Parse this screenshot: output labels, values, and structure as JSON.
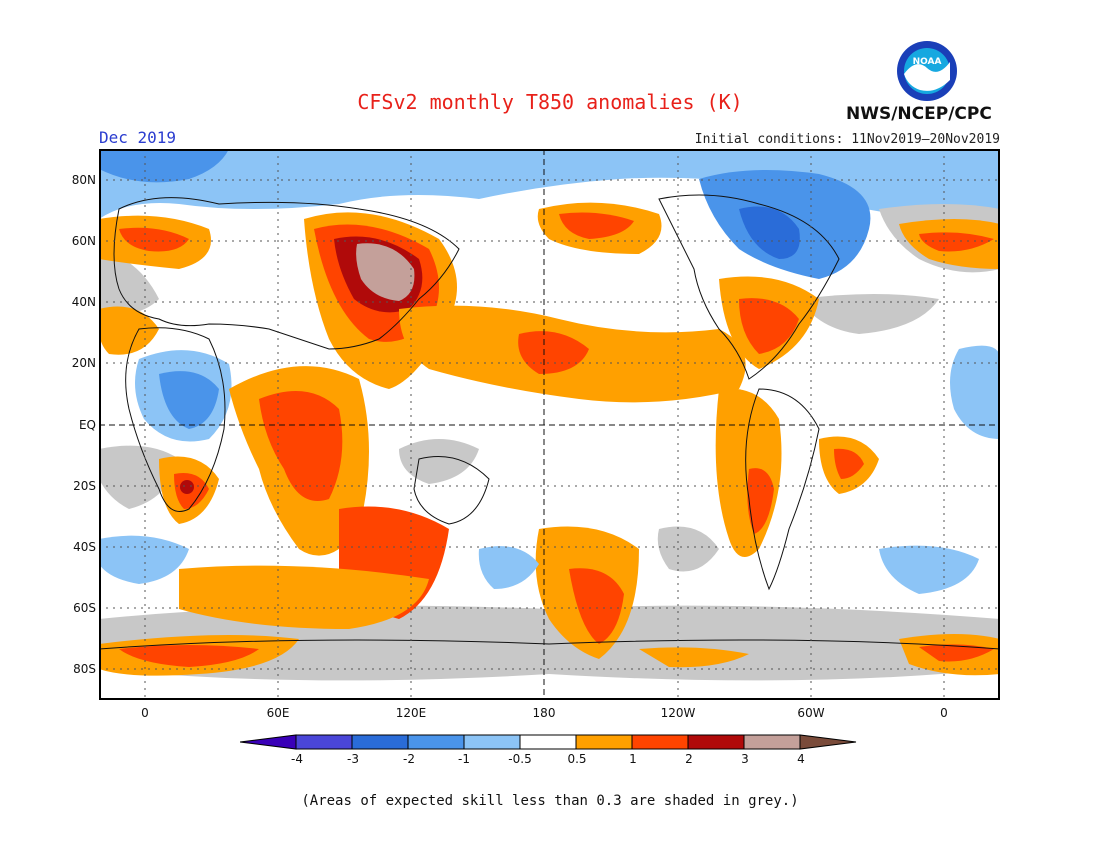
{
  "header": {
    "title": "CFSv2 monthly T850 anomalies (K)",
    "month": "Dec 2019",
    "initial_conditions": "Initial conditions: 11Nov2019–20Nov2019",
    "agency": "NWS/NCEP/CPC",
    "logo_text": "NOAA"
  },
  "axes": {
    "lat_labels": [
      "80N",
      "60N",
      "40N",
      "20N",
      "EQ",
      "20S",
      "40S",
      "60S",
      "80S"
    ],
    "lon_labels": [
      "0",
      "60E",
      "120E",
      "180",
      "120W",
      "60W",
      "0"
    ]
  },
  "legend": {
    "labels": [
      "-4",
      "-3",
      "-2",
      "-1",
      "-0.5",
      "0.5",
      "1",
      "2",
      "3",
      "4"
    ],
    "colors": [
      "#3a00b8",
      "#4a46d8",
      "#2a6cd8",
      "#4a94ea",
      "#8cc4f6",
      "#ffffff",
      "#ffa000",
      "#ff4400",
      "#b00a0a",
      "#c4a09a",
      "#7a4b3a"
    ]
  },
  "note": "(Areas of expected skill less than 0.3 are shaded in grey.)"
}
